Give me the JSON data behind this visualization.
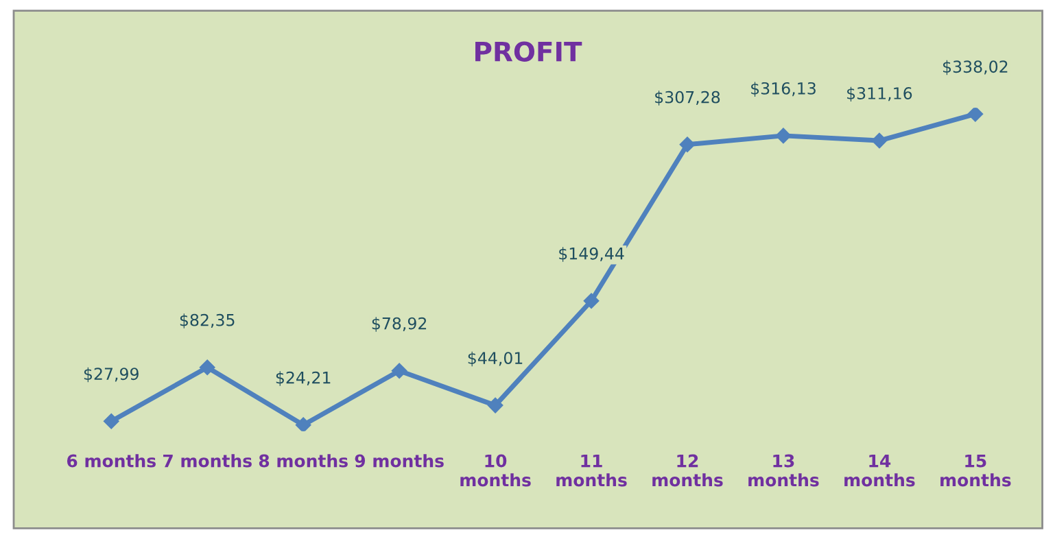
{
  "chart_data": {
    "type": "line",
    "title": "PROFIT",
    "categories": [
      "6 months",
      "7 months",
      "8 months",
      "9 months",
      "10\nmonths",
      "11\nmonths",
      "12\nmonths",
      "13\nmonths",
      "14\nmonths",
      "15\nmonths"
    ],
    "series": [
      {
        "color": "#4f81bd",
        "values": [
          27.99,
          82.35,
          24.21,
          78.92,
          44.01,
          149.44,
          307.28,
          316.13,
          311.16,
          338.02
        ],
        "value_labels": [
          "$27,99",
          "$82,35",
          "$24,21",
          "$78,92",
          "$44,01",
          "$149,44",
          "$307,28",
          "$316,13",
          "$311,16",
          "$338,02"
        ]
      }
    ],
    "marker": "diamond",
    "line_style": "solid",
    "grid": false,
    "legend": false
  }
}
